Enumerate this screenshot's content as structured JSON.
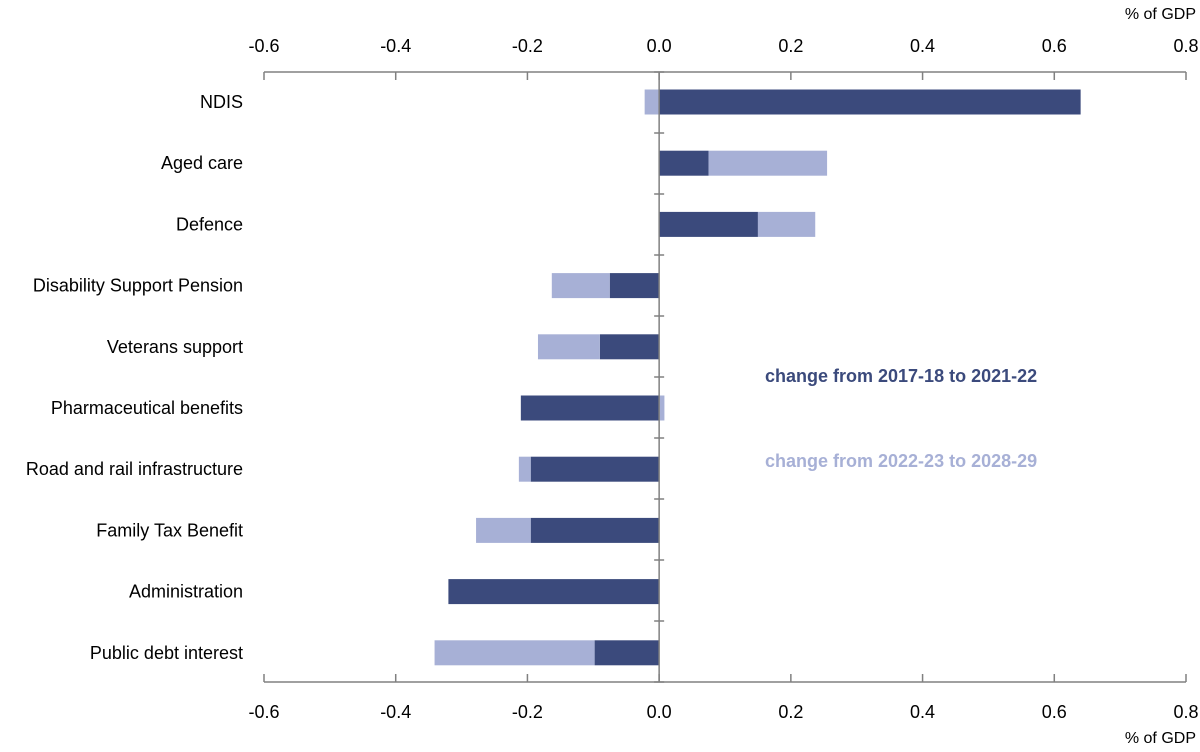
{
  "chart_data": {
    "type": "bar",
    "orientation": "horizontal",
    "stacked": true,
    "unit_label_top": "% of GDP",
    "unit_label_bottom": "% of GDP",
    "xlim": [
      -0.6,
      0.8
    ],
    "x_ticks": [
      -0.6,
      -0.4,
      -0.2,
      0.0,
      0.2,
      0.4,
      0.6,
      0.8
    ],
    "x_tick_labels": [
      "-0.6",
      "-0.4",
      "-0.2",
      "0.0",
      "0.2",
      "0.4",
      "0.6",
      "0.8"
    ],
    "categories": [
      "NDIS",
      "Aged care",
      "Defence",
      "Disability Support Pension",
      "Veterans support",
      "Pharmaceutical benefits",
      "Road and rail infrastructure",
      "Family Tax Benefit",
      "Administration",
      "Public debt interest"
    ],
    "series": [
      {
        "name": "change from 2017-18 to 2021-22",
        "color": "#3b4a7c",
        "values": [
          0.64,
          0.075,
          0.15,
          -0.075,
          -0.09,
          -0.21,
          -0.195,
          -0.195,
          -0.32,
          -0.098
        ]
      },
      {
        "name": "change from 2022-23 to 2028-29",
        "color": "#a7b0d6",
        "values": [
          -0.022,
          0.18,
          0.087,
          -0.088,
          -0.094,
          0.008,
          -0.018,
          -0.083,
          0.0,
          -0.243
        ]
      }
    ],
    "grid": false,
    "legend": "right-center"
  }
}
